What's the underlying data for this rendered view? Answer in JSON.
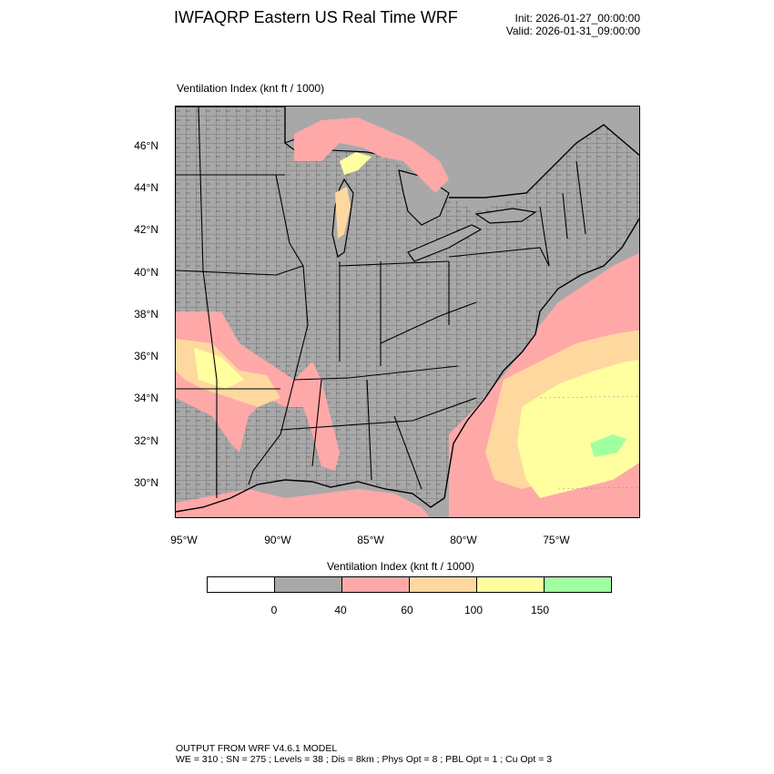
{
  "header": {
    "title": "IWFAQRP Eastern US Real Time WRF",
    "init": "Init: 2026-01-27_00:00:00",
    "valid": "Valid: 2026-01-31_09:00:00"
  },
  "plot": {
    "label": "Ventilation Index   (knt ft / 1000)",
    "lat_labels": [
      "46°N",
      "44°N",
      "42°N",
      "40°N",
      "38°N",
      "36°N",
      "34°N",
      "32°N",
      "30°N"
    ],
    "lon_labels": [
      "95°W",
      "90°W",
      "85°W",
      "80°W",
      "75°W"
    ]
  },
  "colorbar": {
    "title": "Ventilation Index  (knt ft / 1000)",
    "colors": [
      "#ffffff",
      "#a8a8a8",
      "#ffa8a8",
      "#ffd8a0",
      "#ffffa0",
      "#a0ffa0"
    ],
    "labels": [
      "0",
      "40",
      "60",
      "100",
      "150"
    ]
  },
  "footer": {
    "line1": "OUTPUT FROM WRF V4.6.1 MODEL",
    "line2": "WE = 310 ; SN = 275 ; Levels = 38 ; Dis = 8km ; Phys Opt = 8 ; PBL Opt = 1 ; Cu Opt = 3"
  }
}
